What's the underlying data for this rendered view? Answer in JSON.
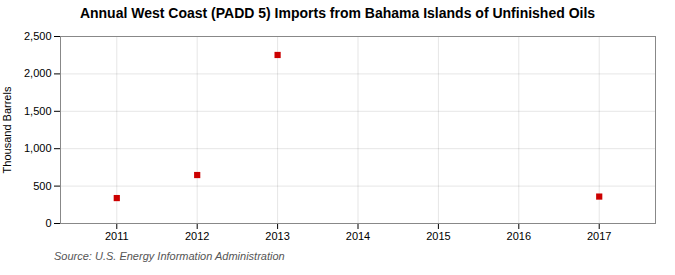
{
  "chart_data": {
    "type": "scatter",
    "title": "Annual West Coast (PADD 5) Imports from Bahama Islands of Unfinished Oils",
    "ylabel": "Thousand Barrels",
    "annotation": "Source: U.S. Energy Information Administration",
    "x": [
      2011,
      2012,
      2013,
      2017
    ],
    "values": [
      340,
      648,
      2253,
      360
    ],
    "color": "#cc0000",
    "marker": "square",
    "xlim": [
      2010.3,
      2017.7
    ],
    "xticks": [
      2011,
      2012,
      2013,
      2014,
      2015,
      2016,
      2017
    ],
    "ylim": [
      0,
      2500
    ],
    "yticks": [
      0,
      500,
      {
        "value": 1000,
        "label": "1,000"
      },
      {
        "value": 1500,
        "label": "1,500"
      },
      {
        "value": 2000,
        "label": "2,000"
      },
      {
        "value": 2500,
        "label": "2,500"
      }
    ],
    "grid": true
  }
}
